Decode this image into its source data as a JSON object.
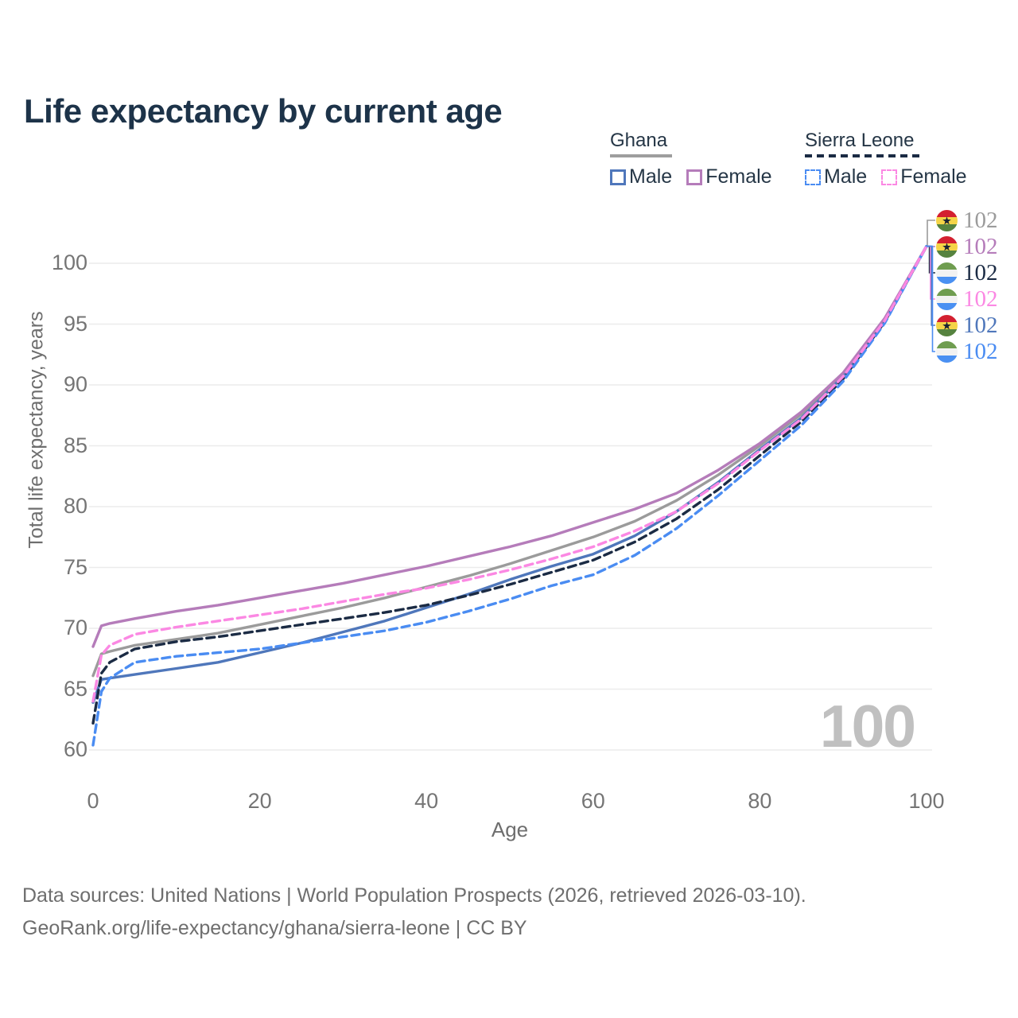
{
  "title": "Life expectancy by current age",
  "legend": {
    "groups": [
      {
        "label": "Ghana",
        "line_style": "solid",
        "underline_color": "#9e9e9e",
        "items": [
          {
            "label": "Male",
            "color": "#4f77bb",
            "style": "solid"
          },
          {
            "label": "Female",
            "color": "#b57cba",
            "style": "solid"
          }
        ]
      },
      {
        "label": "Sierra Leone",
        "line_style": "dashed",
        "underline_color": "#1b2b44",
        "items": [
          {
            "label": "Male",
            "color": "#4a8cf2",
            "style": "dashed"
          },
          {
            "label": "Female",
            "color": "#fb88e3",
            "style": "dashed"
          }
        ]
      }
    ]
  },
  "watermark_age": "100",
  "footer": {
    "line1": "Data sources: United Nations | World Population Prospects (2026, retrieved 2026-03-10).",
    "line2": "GeoRank.org/life-expectancy/ghana/sierra-leone | CC BY"
  },
  "chart_data": {
    "type": "line",
    "title": "Life expectancy by current age",
    "xlabel": "Age",
    "ylabel": "Total life expectancy, years",
    "xlim": [
      0,
      100
    ],
    "ylim": [
      60,
      100
    ],
    "xticks": [
      0,
      20,
      40,
      60,
      80,
      100
    ],
    "yticks": [
      60,
      65,
      70,
      75,
      80,
      85,
      90,
      95,
      100
    ],
    "grid": "horizontal",
    "legend_position": "top-right",
    "x": [
      0,
      1,
      2,
      5,
      10,
      15,
      20,
      25,
      30,
      35,
      40,
      45,
      50,
      55,
      60,
      65,
      70,
      75,
      80,
      85,
      90,
      95,
      100
    ],
    "series": [
      {
        "id": "ghana-total",
        "name": "Ghana (both sexes)",
        "country": "Ghana",
        "sex": "both",
        "flag": "ghana",
        "color": "#9b9b9b",
        "dash": false,
        "end_label": "102",
        "values": [
          66.1,
          67.9,
          68.1,
          68.6,
          69.1,
          69.6,
          70.3,
          71.0,
          71.7,
          72.5,
          73.4,
          74.3,
          75.3,
          76.4,
          77.5,
          78.8,
          80.5,
          82.6,
          85.0,
          87.6,
          90.9,
          95.4,
          101.4
        ]
      },
      {
        "id": "ghana-female",
        "name": "Ghana Female",
        "country": "Ghana",
        "sex": "female",
        "flag": "ghana",
        "color": "#b57cba",
        "dash": false,
        "end_label": "102",
        "values": [
          68.5,
          70.2,
          70.4,
          70.8,
          71.4,
          71.9,
          72.5,
          73.1,
          73.7,
          74.4,
          75.1,
          75.9,
          76.7,
          77.6,
          78.7,
          79.8,
          81.1,
          83.0,
          85.2,
          87.8,
          91.0,
          95.5,
          101.4
        ]
      },
      {
        "id": "sierra-leone-total",
        "name": "Sierra Leone (both sexes)",
        "country": "Sierra Leone",
        "sex": "both",
        "flag": "sierra-leone",
        "color": "#1b2b44",
        "dash": true,
        "end_label": "102",
        "values": [
          62.2,
          66.3,
          67.2,
          68.3,
          68.9,
          69.3,
          69.8,
          70.3,
          70.8,
          71.3,
          71.9,
          72.7,
          73.6,
          74.6,
          75.6,
          77.1,
          79.0,
          81.4,
          84.2,
          87.0,
          90.5,
          95.2,
          101.4
        ]
      },
      {
        "id": "sierra-leone-female",
        "name": "Sierra Leone Female",
        "country": "Sierra Leone",
        "sex": "female",
        "flag": "sierra-leone",
        "color": "#fb88e3",
        "dash": true,
        "end_label": "102",
        "values": [
          64.0,
          67.8,
          68.6,
          69.5,
          70.1,
          70.6,
          71.1,
          71.6,
          72.2,
          72.8,
          73.3,
          74.0,
          74.8,
          75.7,
          76.7,
          78.0,
          79.6,
          81.9,
          84.6,
          87.2,
          90.7,
          95.3,
          101.4
        ]
      },
      {
        "id": "ghana-male",
        "name": "Ghana Male",
        "country": "Ghana",
        "sex": "male",
        "flag": "ghana",
        "color": "#4f77bb",
        "dash": false,
        "end_label": "102",
        "values": [
          63.9,
          65.8,
          65.9,
          66.2,
          66.7,
          67.2,
          68.0,
          68.8,
          69.7,
          70.6,
          71.7,
          72.8,
          74.0,
          75.1,
          76.1,
          77.6,
          79.6,
          82.0,
          84.7,
          87.3,
          90.7,
          95.3,
          101.4
        ]
      },
      {
        "id": "sierra-leone-male",
        "name": "Sierra Leone Male",
        "country": "Sierra Leone",
        "sex": "male",
        "flag": "sierra-leone",
        "color": "#4a8cf2",
        "dash": true,
        "end_label": "102",
        "values": [
          60.4,
          64.8,
          65.9,
          67.2,
          67.7,
          68.0,
          68.3,
          68.8,
          69.3,
          69.8,
          70.5,
          71.4,
          72.4,
          73.5,
          74.4,
          76.0,
          78.2,
          80.9,
          83.8,
          86.7,
          90.3,
          95.1,
          101.4
        ]
      }
    ]
  }
}
